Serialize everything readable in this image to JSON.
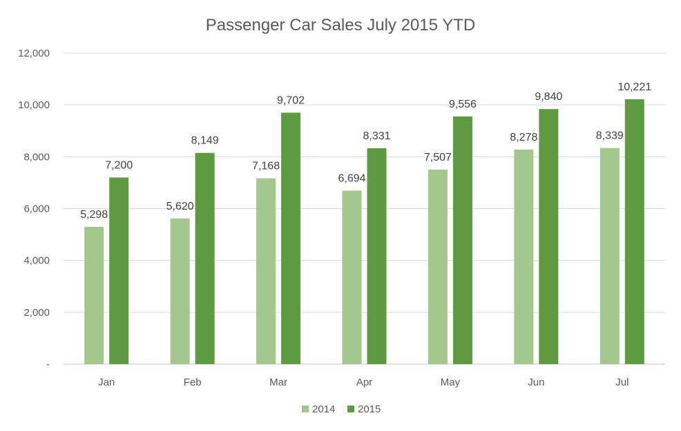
{
  "chart_data": {
    "type": "bar",
    "title": "Passenger Car Sales July 2015 YTD",
    "xlabel": "",
    "ylabel": "",
    "categories": [
      "Jan",
      "Feb",
      "Mar",
      "Apr",
      "May",
      "Jun",
      "Jul"
    ],
    "series": [
      {
        "name": "2014",
        "color": "#a4c68f",
        "values": [
          5298,
          5620,
          7168,
          6694,
          7507,
          8278,
          8339
        ],
        "labels": [
          "5,298",
          "5,620",
          "7,168",
          "6,694",
          "7,507",
          "8,278",
          "8,339"
        ]
      },
      {
        "name": "2015",
        "color": "#5f9a42",
        "values": [
          7200,
          8149,
          9702,
          8331,
          9556,
          9840,
          10221
        ],
        "labels": [
          "7,200",
          "8,149",
          "9,702",
          "8,331",
          "9,556",
          "9,840",
          "10,221"
        ]
      }
    ],
    "ylim": [
      0,
      12000
    ],
    "yticks": [
      0,
      2000,
      4000,
      6000,
      8000,
      10000,
      12000
    ],
    "ytick_labels": [
      "-",
      "2,000",
      "4,000",
      "6,000",
      "8,000",
      "10,000",
      "12,000"
    ],
    "grid": true,
    "legend_position": "bottom"
  }
}
